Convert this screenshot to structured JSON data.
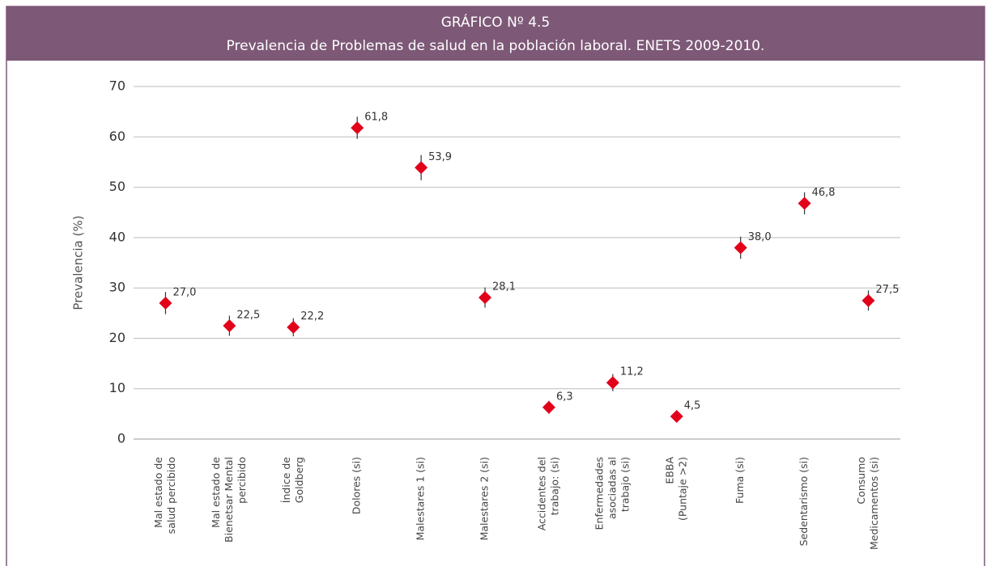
{
  "chart_data": {
    "type": "errorbar",
    "title": "GRÁFICO Nº 4.5",
    "subtitle": "Prevalencia de Problemas de salud en la población laboral. ENETS 2009-2010.",
    "ylabel": "Prevalencia (%)",
    "categories": [
      [
        "Mal estado de",
        "salud percibido"
      ],
      [
        "Mal estado de",
        "Bienetsar Mental",
        "percibido"
      ],
      [
        "Índice de",
        "Goldberg"
      ],
      [
        "Dolores (si)"
      ],
      [
        "Malestares 1 (si)"
      ],
      [
        "Malestares 2 (si)"
      ],
      [
        "Accidentes del",
        "trabajo: (si)"
      ],
      [
        "Enfermedades",
        "asociadas al",
        "trabajo (si)"
      ],
      [
        "EBBA",
        "(Puntaje >2)"
      ],
      [
        "Fuma (si)"
      ],
      [
        "Sedentarismo (si)"
      ],
      [
        "Consumo",
        "Medicamentos (si)"
      ]
    ],
    "values": [
      27.0,
      22.5,
      22.2,
      61.8,
      53.9,
      28.1,
      6.3,
      11.2,
      4.5,
      38.0,
      46.8,
      27.5
    ],
    "value_labels": [
      "27,0",
      "22,5",
      "22,2",
      "61,8",
      "53,9",
      "28,1",
      "6,3",
      "11,2",
      "4,5",
      "38,0",
      "46,8",
      "27,5"
    ],
    "errors": [
      2.2,
      2.0,
      1.8,
      2.2,
      2.5,
      2.0,
      1.3,
      1.7,
      0.8,
      2.2,
      2.2,
      2.0
    ],
    "color": "#e2001a",
    "ylim": [
      0,
      70
    ],
    "yticks": [
      0,
      10,
      20,
      30,
      40,
      50,
      60,
      70
    ],
    "grid": true
  }
}
